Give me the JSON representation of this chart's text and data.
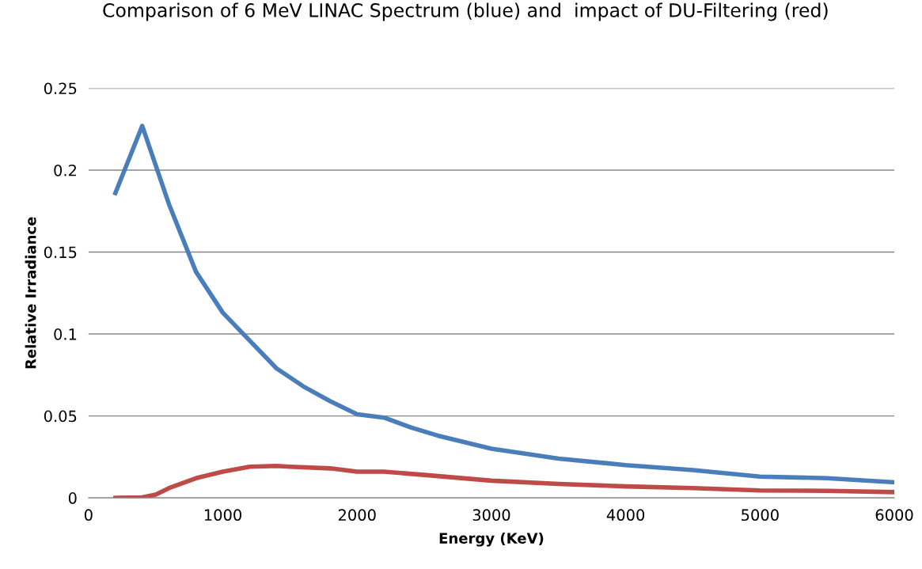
{
  "chart_data": {
    "type": "line",
    "title": "Comparison of 6 MeV LINAC Spectrum (blue) and  impact of DU-Filtering (red)",
    "xlabel": "Energy (KeV)",
    "ylabel": "Relative Irradiance",
    "series": [
      {
        "color": "#4a7ebb",
        "x": [
          200,
          400,
          600,
          800,
          1000,
          1200,
          1400,
          1600,
          1800,
          2000,
          2200,
          2400,
          2600,
          2800,
          3000,
          3500,
          4000,
          4500,
          5000,
          5500,
          6000
        ],
        "values": [
          0.186,
          0.227,
          0.179,
          0.138,
          0.113,
          0.096,
          0.079,
          0.068,
          0.059,
          0.051,
          0.049,
          0.043,
          0.038,
          0.034,
          0.03,
          0.024,
          0.02,
          0.017,
          0.013,
          0.012,
          0.0095
        ]
      },
      {
        "color": "#be4b48",
        "x": [
          200,
          400,
          500,
          600,
          800,
          1000,
          1200,
          1400,
          1500,
          1800,
          2000,
          2200,
          2500,
          3000,
          3500,
          4000,
          4500,
          5000,
          5500,
          6000
        ],
        "values": [
          0,
          0.0003,
          0.002,
          0.006,
          0.012,
          0.016,
          0.019,
          0.0195,
          0.019,
          0.018,
          0.016,
          0.016,
          0.014,
          0.0105,
          0.0085,
          0.007,
          0.006,
          0.0045,
          0.0043,
          0.0035
        ]
      }
    ],
    "xlim": [
      0,
      6000
    ],
    "xticks": [
      0,
      1000,
      2000,
      3000,
      4000,
      5000,
      6000
    ],
    "ylim": [
      0,
      0.25
    ],
    "yticks": [
      0,
      0.05,
      0.1,
      0.15,
      0.2,
      0.25
    ],
    "grid": "y",
    "legend": false,
    "marker": "none",
    "line_style": "solid"
  }
}
